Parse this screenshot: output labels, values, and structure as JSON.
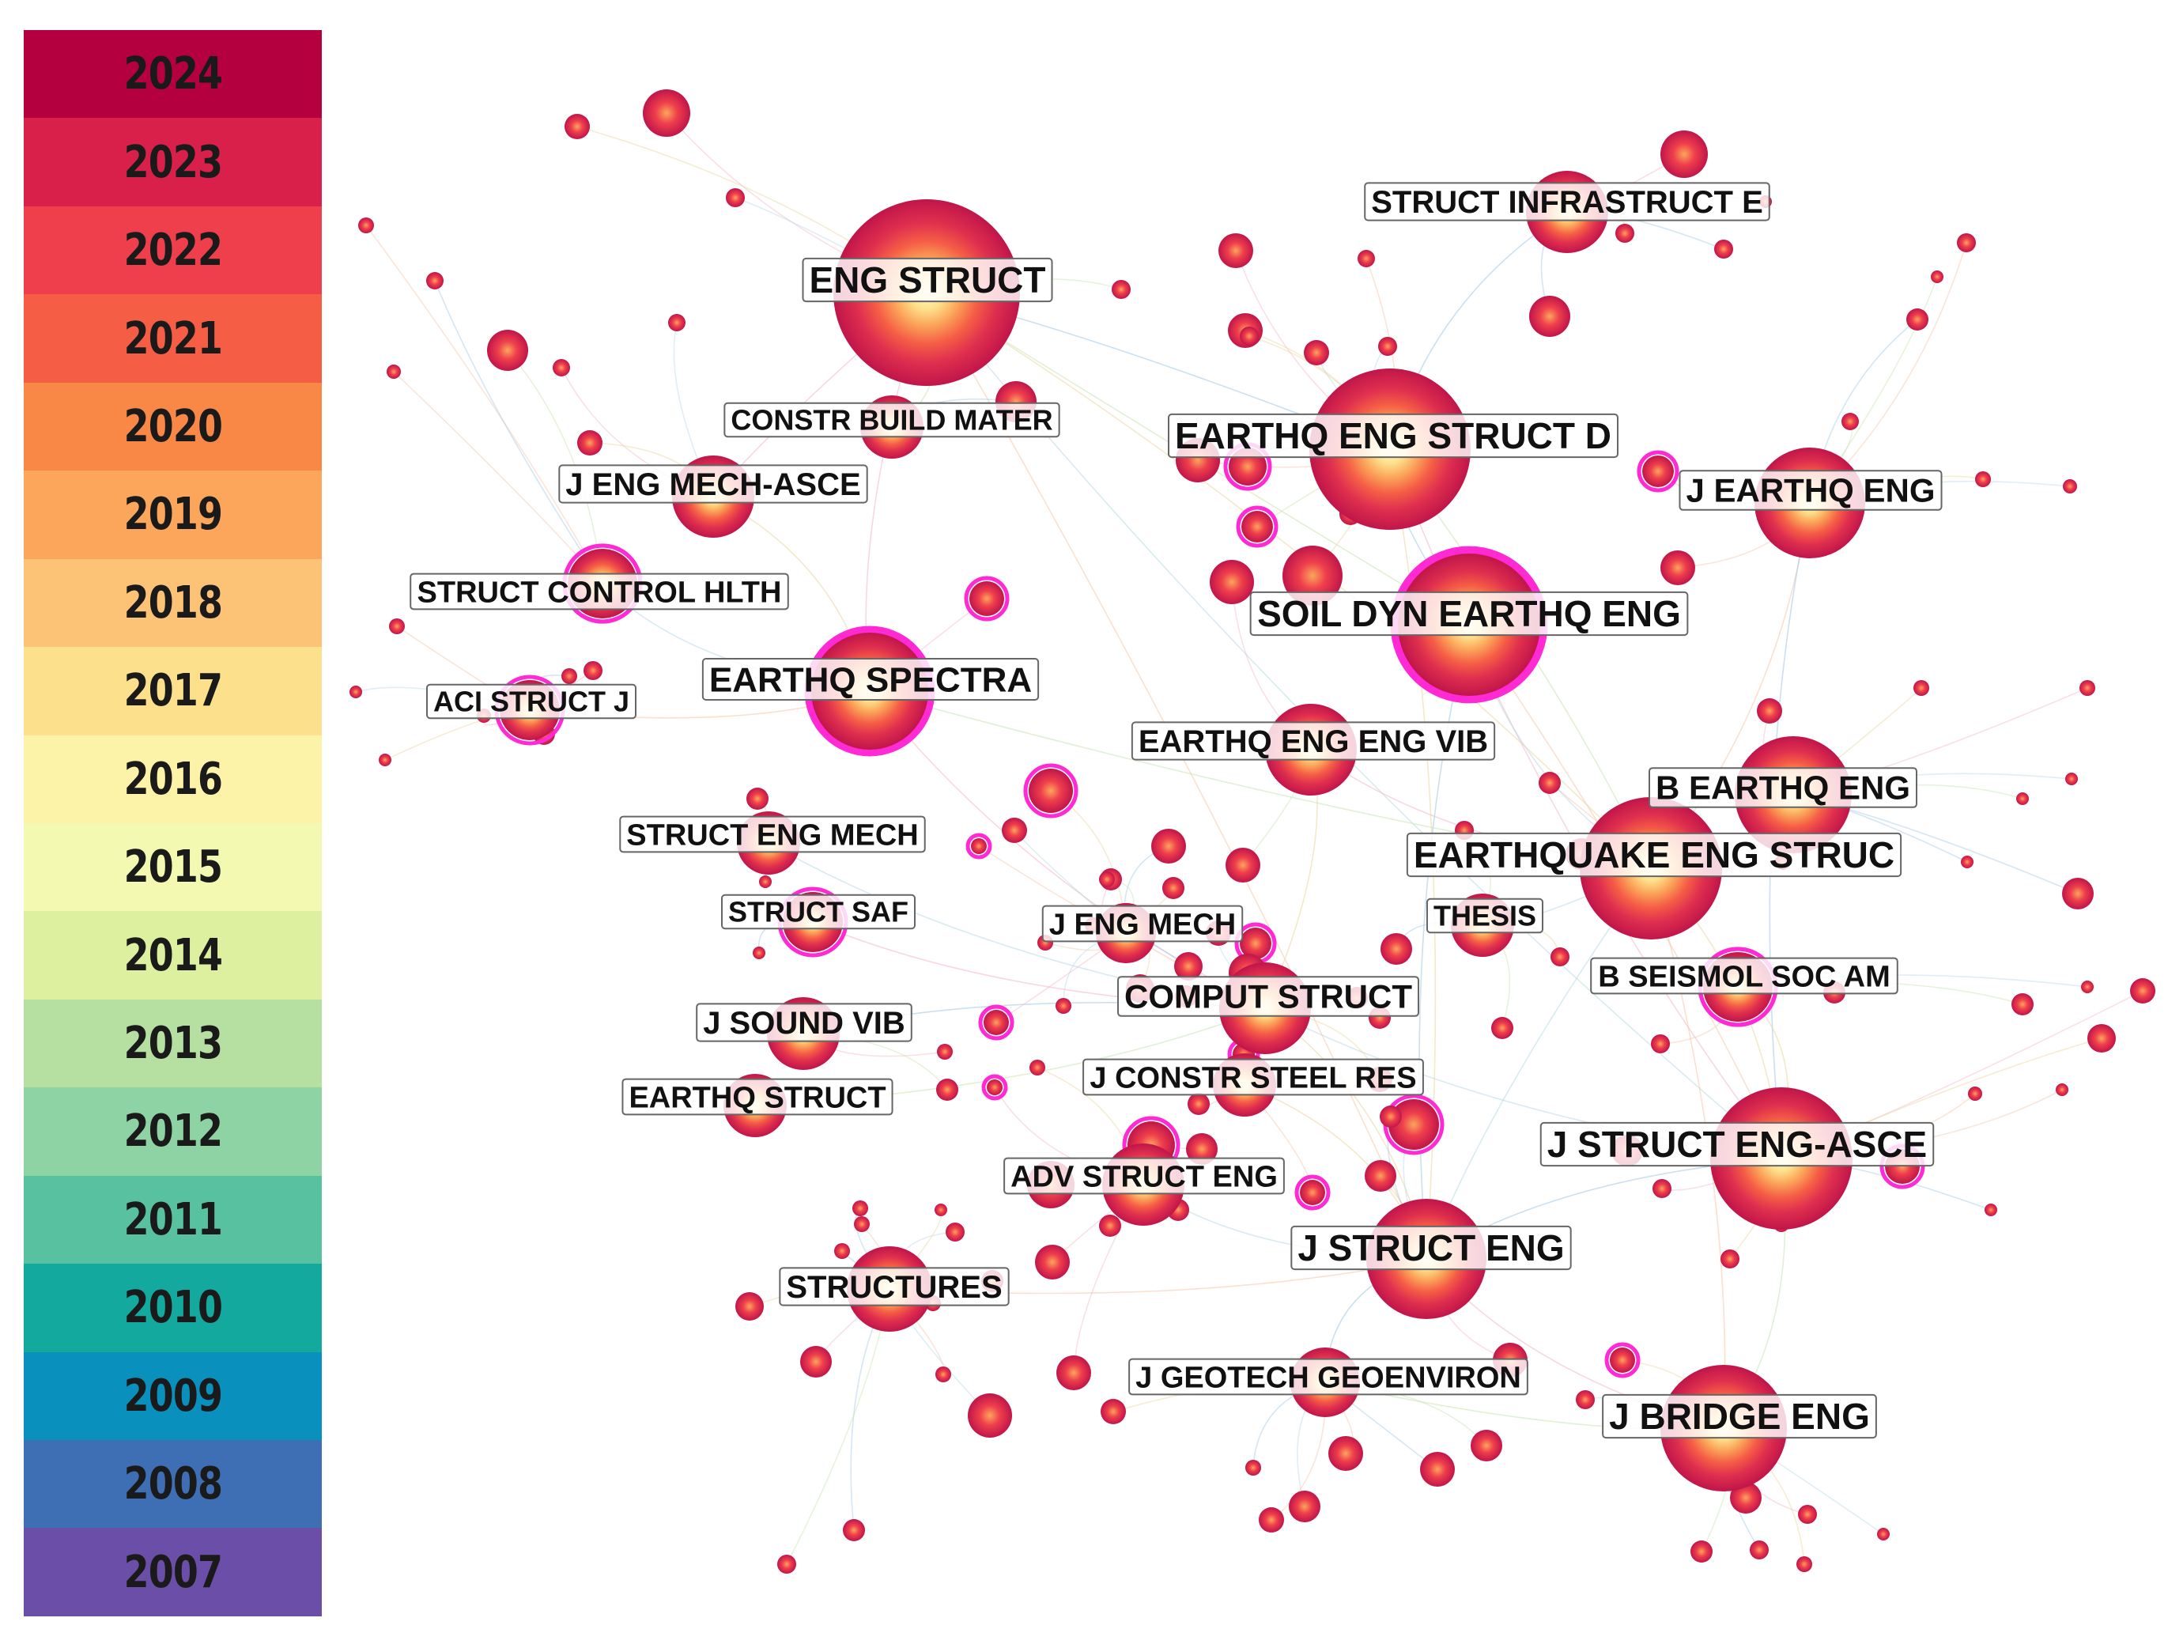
{
  "legend": {
    "years": [
      {
        "label": "2024",
        "color": "#b4003f"
      },
      {
        "label": "2023",
        "color": "#d9204a"
      },
      {
        "label": "2022",
        "color": "#ef3f4c"
      },
      {
        "label": "2021",
        "color": "#f55e45"
      },
      {
        "label": "2020",
        "color": "#f98847"
      },
      {
        "label": "2019",
        "color": "#fba65a"
      },
      {
        "label": "2018",
        "color": "#fcc276"
      },
      {
        "label": "2017",
        "color": "#fde08b"
      },
      {
        "label": "2016",
        "color": "#fdf3a8"
      },
      {
        "label": "2015",
        "color": "#f3f9b0"
      },
      {
        "label": "2014",
        "color": "#dcf0a0"
      },
      {
        "label": "2013",
        "color": "#b6e0a2"
      },
      {
        "label": "2012",
        "color": "#8dd3a3"
      },
      {
        "label": "2011",
        "color": "#57c1a0"
      },
      {
        "label": "2010",
        "color": "#13a99e"
      },
      {
        "label": "2009",
        "color": "#0a90bc"
      },
      {
        "label": "2008",
        "color": "#3e6fb5"
      },
      {
        "label": "2007",
        "color": "#6b4ea7"
      }
    ]
  },
  "network": {
    "burst_color": "#ff2ad4",
    "labels": [
      "ENG STRUCT",
      "STRUCT INFRASTRUCT E",
      "CONSTR BUILD MATER",
      "EARTHQ ENG STRUCT D",
      "J EARTHQ ENG",
      "J ENG MECH-ASCE",
      "STRUCT CONTROL HLTH",
      "SOIL DYN EARTHQ ENG",
      "ACI STRUCT J",
      "EARTHQ SPECTRA",
      "EARTHQ ENG ENG VIB",
      "B EARTHQ ENG",
      "EARTHQUAKE ENG STRUC",
      "STRUCT ENG MECH",
      "STRUCT SAF",
      "J ENG MECH",
      "THESIS",
      "B SEISMOL SOC AM",
      "COMPUT STRUCT",
      "J SOUND VIB",
      "EARTHQ STRUCT",
      "J CONSTR STEEL RES",
      "J STRUCT ENG-ASCE",
      "ADV STRUCT ENG",
      "J STRUCT ENG",
      "STRUCTURES",
      "J GEOTECH GEOENVIRON",
      "J BRIDGE ENG"
    ]
  }
}
